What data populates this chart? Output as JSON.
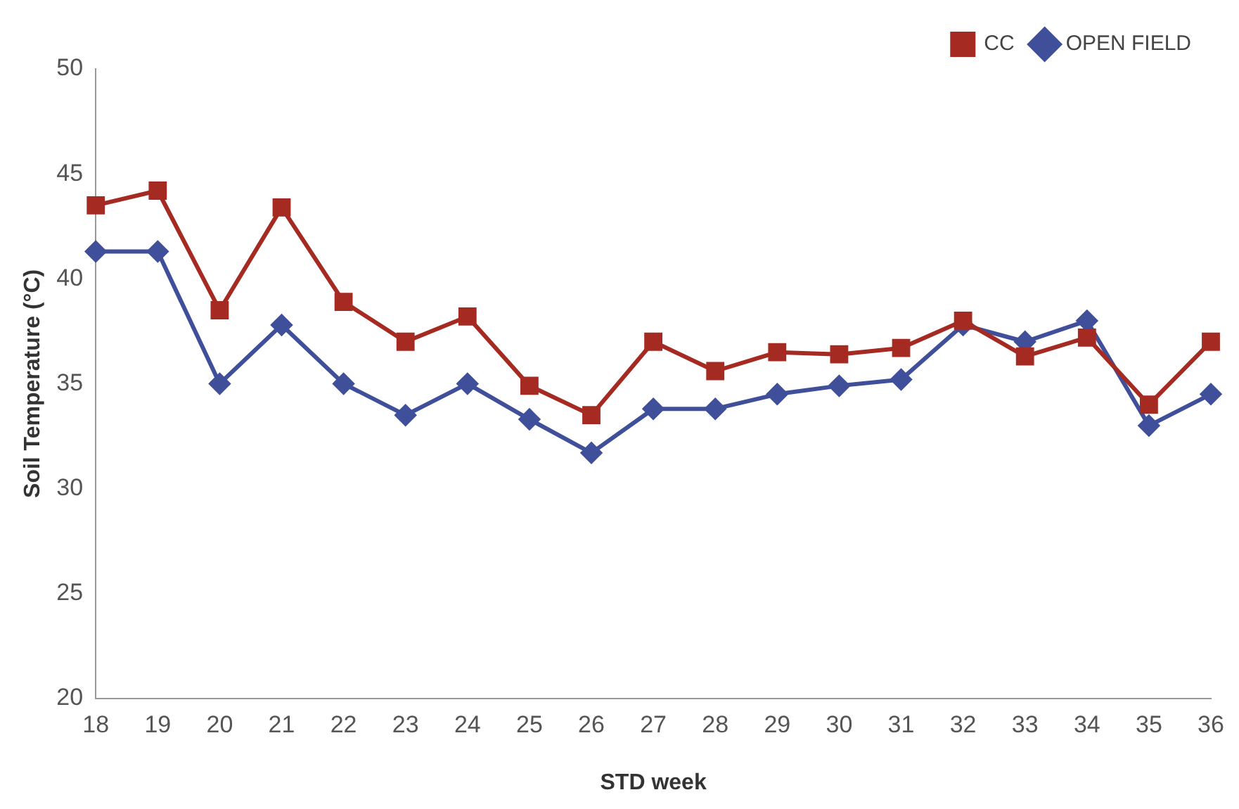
{
  "chart_data": {
    "type": "line",
    "xlabel": "STD week",
    "ylabel": "Soil Temperature (°C)",
    "categories": [
      "18",
      "19",
      "20",
      "21",
      "22",
      "23",
      "24",
      "25",
      "26",
      "27",
      "28",
      "29",
      "30",
      "31",
      "32",
      "33",
      "34",
      "35",
      "36"
    ],
    "series": [
      {
        "name": "OPEN FIELD",
        "color": "#3f4f9a",
        "marker": "diamond",
        "values": [
          41.3,
          41.3,
          35.0,
          37.8,
          35.0,
          33.5,
          35.0,
          33.3,
          31.7,
          33.8,
          33.8,
          34.5,
          34.9,
          35.2,
          37.8,
          37.0,
          38.0,
          33.0,
          34.5
        ]
      },
      {
        "name": "CC",
        "color": "#a52a22",
        "marker": "square",
        "values": [
          43.5,
          44.2,
          38.5,
          43.4,
          38.9,
          37.0,
          38.2,
          34.9,
          33.5,
          37.0,
          35.6,
          36.5,
          36.4,
          36.7,
          38.0,
          36.3,
          37.2,
          34.0,
          37.0
        ]
      }
    ],
    "ylim": [
      20,
      50
    ],
    "yticks": [
      20,
      25,
      30,
      35,
      40,
      45,
      50
    ],
    "grid": false,
    "legend": "top right",
    "line_style": "solid"
  }
}
